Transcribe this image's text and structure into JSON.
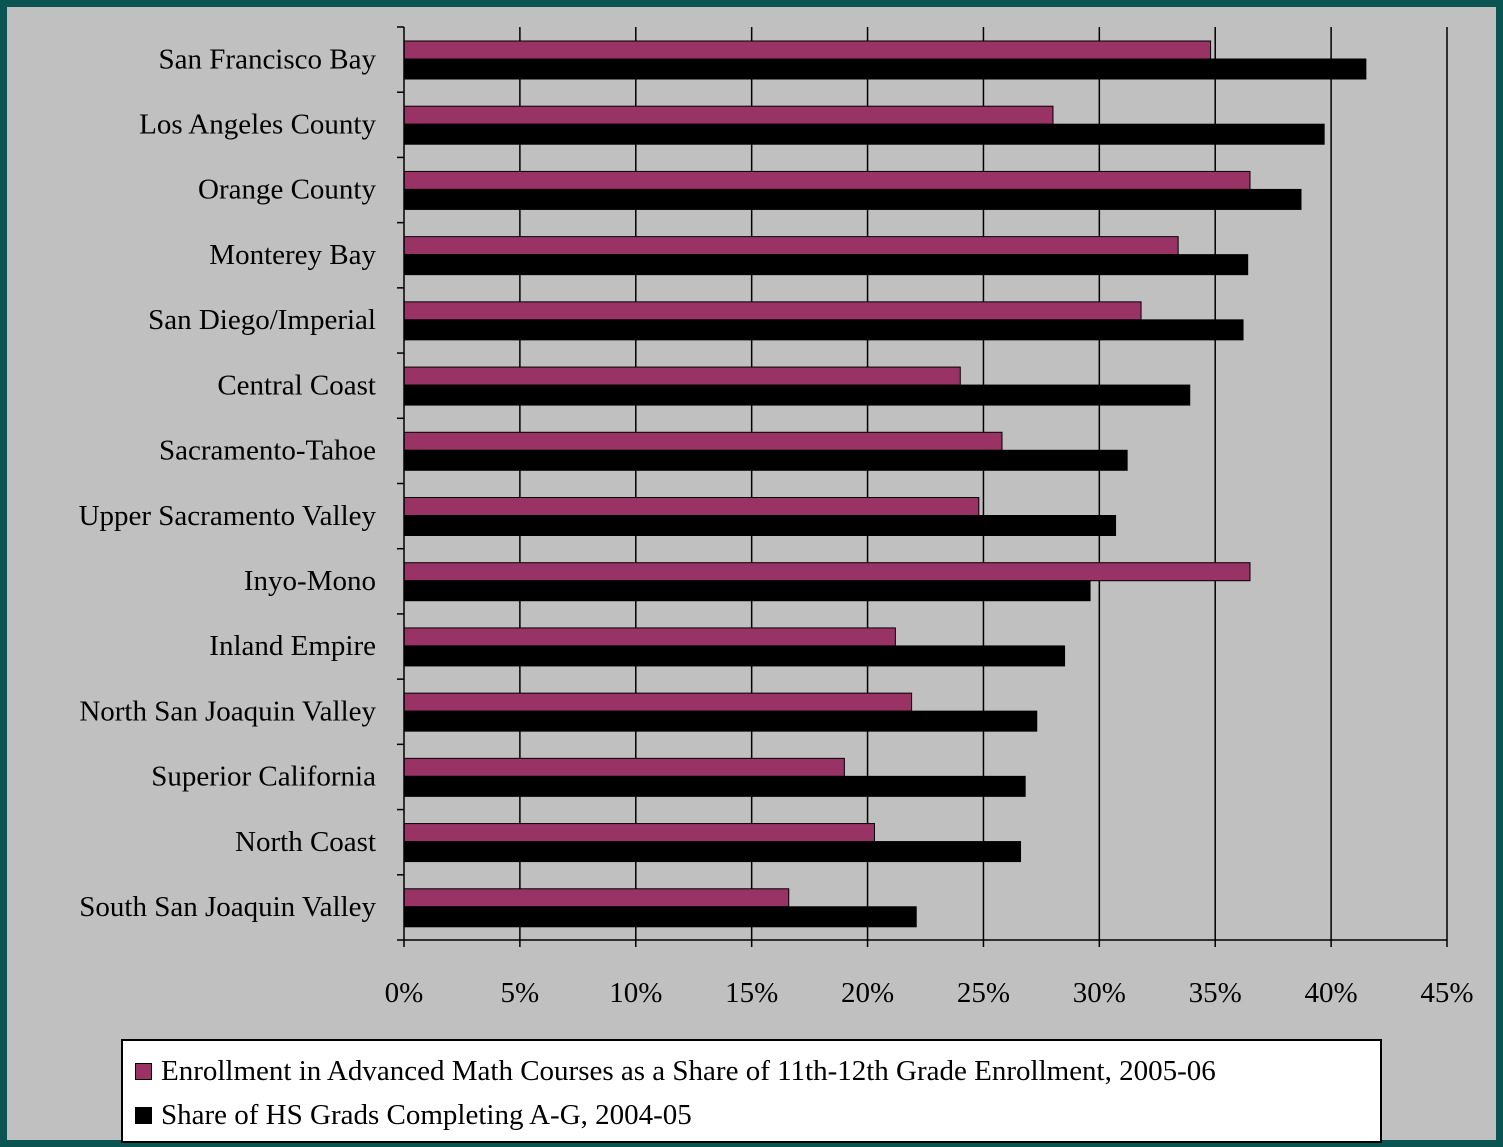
{
  "colors": {
    "outer_background": "#0a5552",
    "plot_background": "#c0c0c0",
    "series_1": "#993366",
    "series_2": "#000000"
  },
  "chart_data": {
    "type": "bar",
    "orientation": "horizontal",
    "categories": [
      "San Francisco Bay",
      "Los Angeles County",
      "Orange County",
      "Monterey Bay",
      "San Diego/Imperial",
      "Central Coast",
      "Sacramento-Tahoe",
      "Upper Sacramento Valley",
      "Inyo-Mono",
      "Inland Empire",
      "North San Joaquin Valley",
      "Superior California",
      "North Coast",
      "South San Joaquin Valley"
    ],
    "series": [
      {
        "name": "Enrollment in Advanced Math Courses as a Share of 11th-12th Grade Enrollment, 2005-06",
        "color": "#993366",
        "values": [
          0.348,
          0.28,
          0.365,
          0.334,
          0.318,
          0.24,
          0.258,
          0.248,
          0.365,
          0.212,
          0.219,
          0.19,
          0.203,
          0.166
        ]
      },
      {
        "name": "Share of HS Grads Completing A-G, 2004-05",
        "color": "#000000",
        "values": [
          0.415,
          0.397,
          0.387,
          0.364,
          0.362,
          0.339,
          0.312,
          0.307,
          0.296,
          0.285,
          0.273,
          0.268,
          0.266,
          0.221
        ]
      }
    ],
    "x_ticks": [
      "0%",
      "5%",
      "10%",
      "15%",
      "20%",
      "25%",
      "30%",
      "35%",
      "40%",
      "45%"
    ],
    "xlim": [
      0,
      0.45
    ],
    "gridlines": "vertical",
    "legend_position": "bottom"
  }
}
